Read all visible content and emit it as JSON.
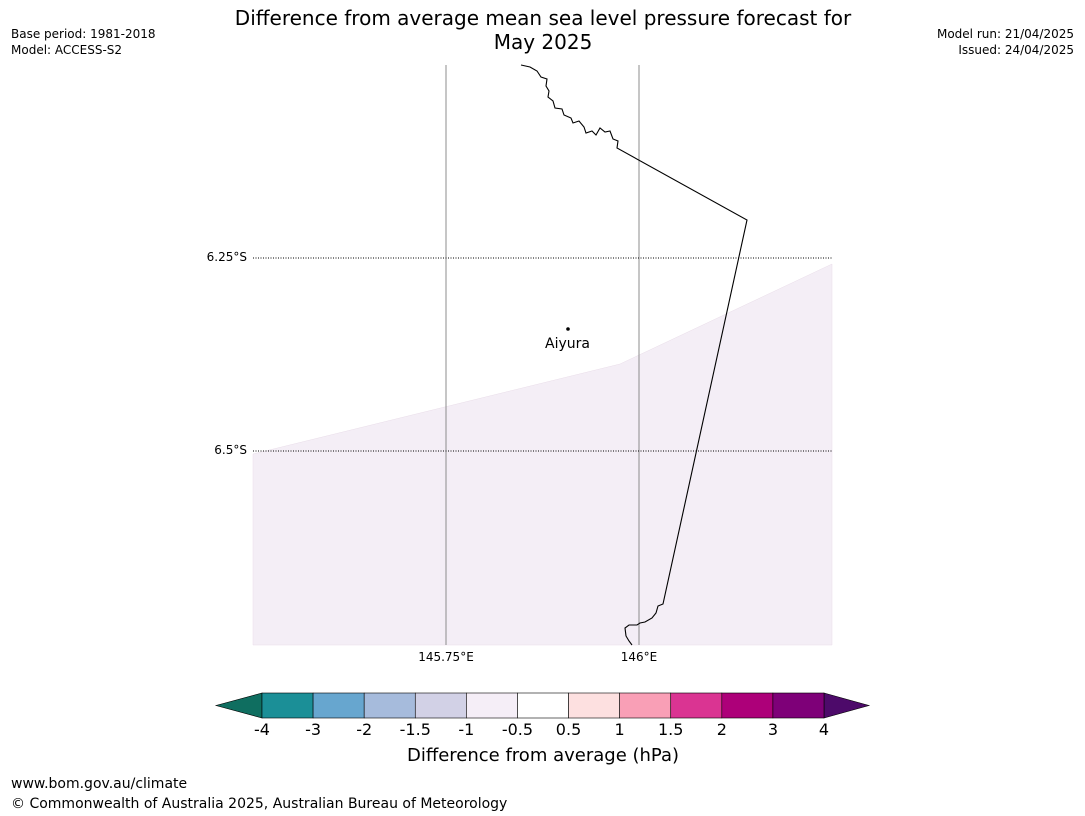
{
  "title": {
    "line1": "Difference from average mean sea level pressure forecast for",
    "line2": "May 2025"
  },
  "meta_left": {
    "base_period": "Base period: 1981-2018",
    "model": "Model: ACCESS-S2"
  },
  "meta_right": {
    "model_run": "Model run: 21/04/2025",
    "issued": "Issued: 24/04/2025"
  },
  "map": {
    "background_color": "#ffffff",
    "anomaly_region_color": "#f4eef6",
    "gridlines": {
      "latitudes": [
        "6.25°S",
        "6.5°S"
      ],
      "longitudes": [
        "145.75°E",
        "146°E"
      ]
    },
    "places": [
      {
        "name": "Aiyura"
      }
    ]
  },
  "colorbar": {
    "label": "Difference from average (hPa)",
    "ticks": [
      "-4",
      "-3",
      "-2",
      "-1.5",
      "-1",
      "-0.5",
      "0.5",
      "1",
      "1.5",
      "2",
      "3",
      "4"
    ],
    "under_color": "#0f6e60",
    "over_color": "#4d0a6a",
    "colors": [
      "#1b8f97",
      "#67a6cf",
      "#a6bbdc",
      "#d2d1e6",
      "#f5eef7",
      "#ffffff",
      "#fde0e0",
      "#f99fb6",
      "#da3492",
      "#ad0079",
      "#7e0078"
    ]
  },
  "footer": {
    "url": "www.bom.gov.au/climate",
    "copyright": "© Commonwealth of Australia 2025, Australian Bureau of Meteorology"
  }
}
